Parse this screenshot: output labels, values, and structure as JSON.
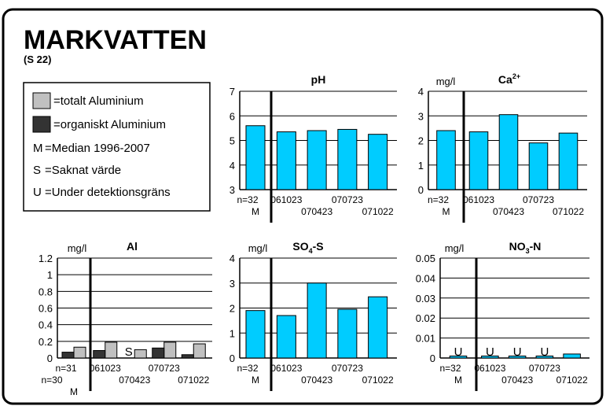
{
  "header": {
    "title": "MARKVATTEN",
    "subtitle": "(S 22)"
  },
  "legend": {
    "items": [
      {
        "key": "M",
        "text": "=Median 1996-2007"
      },
      {
        "key": "S",
        "text": "=Saknat värde"
      },
      {
        "key": "U",
        "text": "=Under detektionsgräns"
      }
    ]
  },
  "chart_data": [
    {
      "type": "bar",
      "title": {
        "base": "pH"
      },
      "n_labels": [
        "n=32"
      ],
      "categories": [
        "M",
        "061023",
        "070423",
        "070723",
        "071022"
      ],
      "values": [
        5.6,
        5.35,
        5.4,
        5.45,
        5.25
      ],
      "color": "#00ccff",
      "ylim": [
        3,
        7
      ],
      "yticks": [
        3,
        4,
        5,
        6,
        7
      ],
      "grid": true
    },
    {
      "type": "bar",
      "title": {
        "base": "Ca",
        "sup": "2+"
      },
      "unit": "mg/l",
      "n_labels": [
        "n=32"
      ],
      "categories": [
        "M",
        "061023",
        "070423",
        "070723",
        "071022"
      ],
      "values": [
        2.4,
        2.35,
        3.05,
        1.9,
        2.3
      ],
      "color": "#00ccff",
      "ylim": [
        0,
        4
      ],
      "yticks": [
        0,
        1,
        2,
        3,
        4
      ],
      "grid": true
    },
    {
      "type": "bar",
      "title": {
        "base": "Al"
      },
      "unit": "mg/l",
      "n_labels": [
        "n=31",
        "n=30"
      ],
      "categories": [
        "M",
        "061023",
        "070423",
        "070723",
        "071022"
      ],
      "series": [
        {
          "name": "=totalt Aluminium",
          "color": "#c0c0c0",
          "values": [
            0.13,
            0.19,
            0.1,
            0.19,
            0.17
          ]
        },
        {
          "name": "=organiskt Aluminium",
          "color": "#333333",
          "values": [
            0.07,
            0.09,
            null,
            0.12,
            0.04
          ],
          "flags": [
            null,
            null,
            "S",
            null,
            null
          ]
        }
      ],
      "ylim": [
        0,
        1.2
      ],
      "yticks": [
        0,
        0.2,
        0.4,
        0.6,
        0.8,
        1,
        1.2
      ],
      "grid": true
    },
    {
      "type": "bar",
      "title": {
        "base": "SO",
        "sub": "4",
        "tail": "-S"
      },
      "unit": "mg/l",
      "n_labels": [
        "n=32"
      ],
      "categories": [
        "M",
        "061023",
        "070423",
        "070723",
        "071022"
      ],
      "values": [
        1.9,
        1.7,
        3.0,
        1.95,
        2.45
      ],
      "color": "#00ccff",
      "ylim": [
        0,
        4
      ],
      "yticks": [
        0,
        1,
        2,
        3,
        4
      ],
      "grid": true
    },
    {
      "type": "bar",
      "title": {
        "base": "NO",
        "sub": "3",
        "tail": "-N"
      },
      "unit": "mg/l",
      "n_labels": [
        "n=32"
      ],
      "categories": [
        "M",
        "061023",
        "070423",
        "070723",
        "071022"
      ],
      "values": [
        0.001,
        0.001,
        0.001,
        0.001,
        0.002
      ],
      "flags": [
        "U",
        "U",
        "U",
        "U",
        null
      ],
      "color": "#00ccff",
      "ylim": [
        0,
        0.05
      ],
      "yticks": [
        0,
        0.01,
        0.02,
        0.03,
        0.04,
        0.05
      ],
      "grid": true
    }
  ]
}
